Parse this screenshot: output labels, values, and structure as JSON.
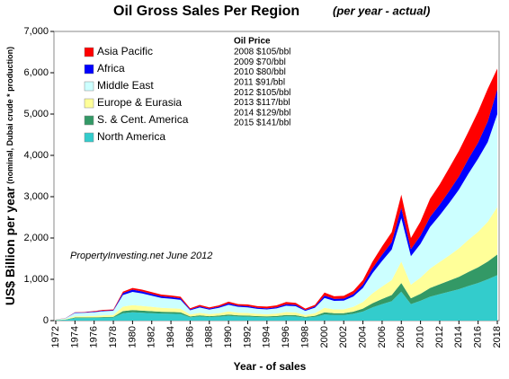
{
  "chart_data": {
    "type": "stacked_area",
    "title": "Oil Gross Sales Per Region",
    "subtitle": "(per year - actual)",
    "x_label": "Year - of sales",
    "y_label": "US$ Billion per year",
    "y_label_note": "(nominal, Dubai crude * production)",
    "annotations": {
      "price_title": "Oil Price",
      "prices": [
        "2008  $105/bbl",
        "2009  $70/bbl",
        "2010  $80/bbl",
        "2011 $91/bbl",
        "2012 $105/bbl",
        "2013 $117/bbl",
        "2014 $129/bbl",
        "2015 $141/bbl"
      ],
      "source": "PropertyInvesting.net  June 2012"
    },
    "x": [
      1972,
      1973,
      1974,
      1975,
      1976,
      1977,
      1978,
      1979,
      1980,
      1981,
      1982,
      1983,
      1984,
      1985,
      1986,
      1987,
      1988,
      1989,
      1990,
      1991,
      1992,
      1993,
      1994,
      1995,
      1996,
      1997,
      1998,
      1999,
      2000,
      2001,
      2002,
      2003,
      2004,
      2005,
      2006,
      2007,
      2008,
      2009,
      2010,
      2011,
      2012,
      2013,
      2014,
      2015,
      2016,
      2017,
      2018
    ],
    "xlim": [
      1972,
      2018
    ],
    "xticks": [
      1972,
      1974,
      1976,
      1978,
      1980,
      1982,
      1984,
      1986,
      1988,
      1990,
      1992,
      1994,
      1996,
      1998,
      2000,
      2002,
      2004,
      2006,
      2008,
      2010,
      2012,
      2014,
      2016,
      2018
    ],
    "ylim": [
      0,
      7000
    ],
    "yticks": [
      0,
      {
        "value": 1000,
        "label": "1,000"
      },
      {
        "value": 2000,
        "label": "2,000"
      },
      {
        "value": 3000,
        "label": "3,000"
      },
      {
        "value": 4000,
        "label": "4,000"
      },
      {
        "value": 5000,
        "label": "5,000"
      },
      {
        "value": 6000,
        "label": "6,000"
      },
      {
        "value": 7000,
        "label": "7,000"
      }
    ],
    "series": [
      {
        "name": "North America",
        "color": "#33cccc",
        "values": [
          10,
          20,
          60,
          60,
          65,
          70,
          75,
          180,
          200,
          190,
          180,
          170,
          165,
          160,
          80,
          100,
          85,
          95,
          115,
          100,
          95,
          85,
          80,
          85,
          105,
          100,
          70,
          90,
          150,
          135,
          135,
          165,
          220,
          320,
          400,
          470,
          700,
          400,
          480,
          580,
          640,
          700,
          760,
          840,
          910,
          1000,
          1100
        ]
      },
      {
        "name": "S. & Cent. America",
        "color": "#339966",
        "values": [
          3,
          5,
          15,
          15,
          15,
          17,
          18,
          50,
          55,
          52,
          48,
          44,
          43,
          40,
          20,
          27,
          22,
          26,
          33,
          28,
          28,
          25,
          24,
          27,
          32,
          31,
          21,
          28,
          50,
          43,
          44,
          53,
          72,
          100,
          125,
          150,
          210,
          140,
          170,
          210,
          240,
          270,
          300,
          340,
          380,
          430,
          500
        ]
      },
      {
        "name": "Europe & Eurasia",
        "color": "#ffff99",
        "values": [
          5,
          10,
          30,
          32,
          35,
          40,
          42,
          110,
          120,
          115,
          105,
          95,
          92,
          88,
          50,
          60,
          50,
          58,
          75,
          65,
          62,
          55,
          52,
          58,
          70,
          68,
          45,
          60,
          110,
          95,
          95,
          115,
          160,
          240,
          300,
          360,
          520,
          330,
          390,
          470,
          540,
          610,
          690,
          780,
          860,
          960,
          1150
        ]
      },
      {
        "name": "Middle East",
        "color": "#ccffff",
        "values": [
          8,
          20,
          80,
          83,
          90,
          100,
          103,
          280,
          320,
          300,
          270,
          240,
          230,
          215,
          100,
          130,
          110,
          130,
          160,
          140,
          135,
          120,
          115,
          125,
          155,
          150,
          100,
          135,
          240,
          205,
          210,
          250,
          340,
          490,
          620,
          740,
          1050,
          690,
          820,
          1010,
          1130,
          1270,
          1420,
          1600,
          1770,
          1930,
          2250
        ]
      },
      {
        "name": "Africa",
        "color": "#0000ff",
        "values": [
          2,
          3,
          10,
          10,
          12,
          15,
          15,
          45,
          55,
          50,
          45,
          42,
          40,
          38,
          22,
          28,
          24,
          27,
          35,
          30,
          30,
          27,
          26,
          28,
          35,
          33,
          23,
          30,
          55,
          48,
          48,
          58,
          80,
          120,
          150,
          180,
          250,
          170,
          200,
          240,
          260,
          290,
          320,
          360,
          390,
          500,
          600
        ]
      },
      {
        "name": "Asia Pacific",
        "color": "#ff0000",
        "values": [
          2,
          2,
          5,
          10,
          13,
          18,
          17,
          35,
          40,
          43,
          42,
          39,
          40,
          39,
          28,
          35,
          29,
          34,
          42,
          37,
          40,
          38,
          43,
          47,
          53,
          48,
          31,
          37,
          75,
          64,
          68,
          79,
          108,
          160,
          205,
          240,
          320,
          270,
          340,
          440,
          490,
          560,
          620,
          660,
          750,
          790,
          500
        ]
      }
    ]
  }
}
